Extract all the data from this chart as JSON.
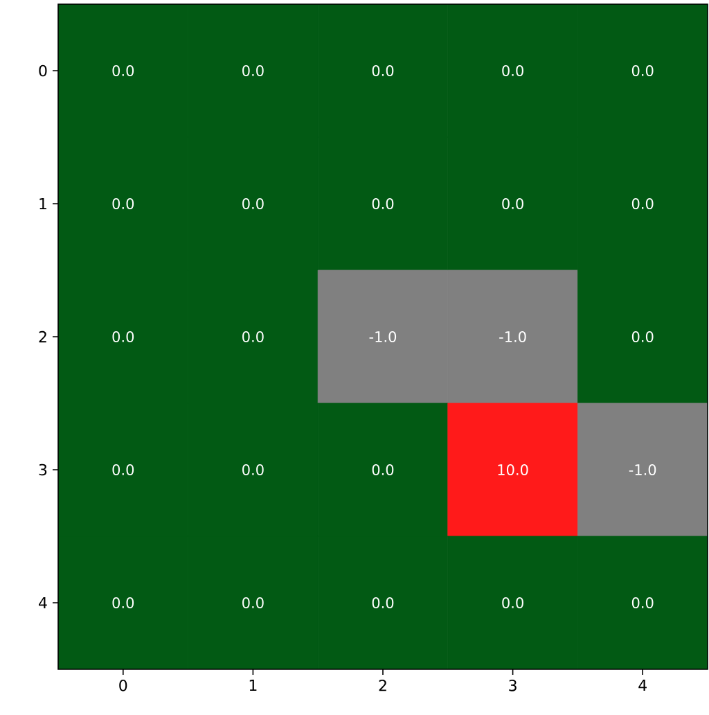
{
  "chart_data": {
    "type": "heatmap",
    "categories": [
      "0",
      "1",
      "2",
      "3",
      "4"
    ],
    "y_categories": [
      "0",
      "1",
      "2",
      "3",
      "4"
    ],
    "cells": [
      [
        0,
        0,
        0,
        0,
        0
      ],
      [
        0,
        0,
        0,
        0,
        0
      ],
      [
        0,
        0,
        -1,
        -1,
        0
      ],
      [
        0,
        0,
        0,
        10,
        -1
      ],
      [
        0,
        0,
        0,
        0,
        0
      ]
    ],
    "cell_labels": [
      [
        "0.0",
        "0.0",
        "0.0",
        "0.0",
        "0.0"
      ],
      [
        "0.0",
        "0.0",
        "0.0",
        "0.0",
        "0.0"
      ],
      [
        "0.0",
        "0.0",
        "-1.0",
        "-1.0",
        "0.0"
      ],
      [
        "0.0",
        "0.0",
        "0.0",
        "10.0",
        "-1.0"
      ],
      [
        "0.0",
        "0.0",
        "0.0",
        "0.0",
        "0.0"
      ]
    ],
    "colors": [
      "#808080",
      "#025a14",
      "#ff1a1a"
    ]
  }
}
